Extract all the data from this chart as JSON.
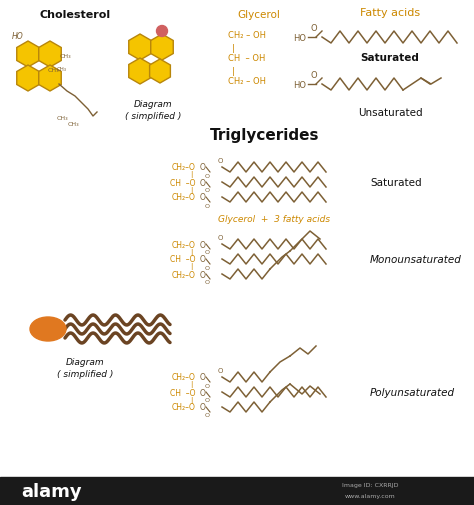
{
  "bg_color": "#ffffff",
  "black": "#111111",
  "orange": "#CC8800",
  "brown": "#7D6035",
  "yellow_fill": "#F5C400",
  "yellow_edge": "#B8860B",
  "red_dot": "#D06060",
  "alamy_bg": "#1a1a1a",
  "alamy_text": "#ffffff",
  "alamy_sub": "#aaaaaa",
  "chol_title": "Cholesterol",
  "fatty_title": "Fatty acids",
  "glycerol_title": "Glycerol",
  "trig_title": "Triglycerides",
  "saturated": "Saturated",
  "unsaturated": "Unsaturated",
  "monounsat": "Monounsaturated",
  "polyunsat": "Polyunsaturated",
  "diag_simp": "Diagram\n( simplified )",
  "gly_3fa": "Glycerol  +  3 fatty acids"
}
